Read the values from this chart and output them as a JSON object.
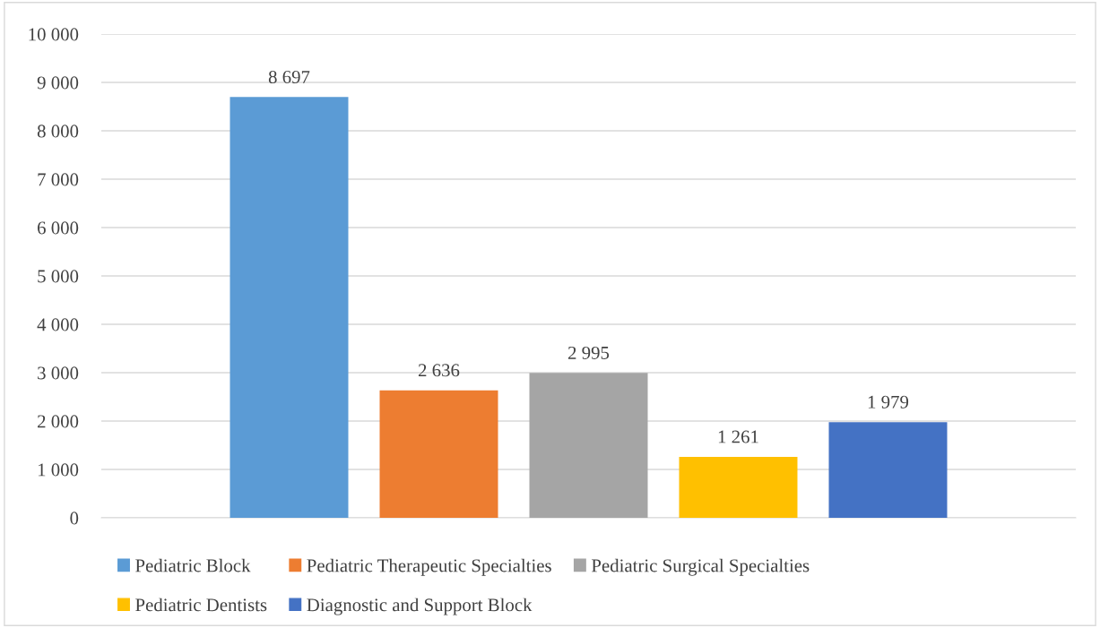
{
  "chart_data": {
    "type": "bar",
    "categories": [
      null
    ],
    "series": [
      {
        "name": "Pediatric Block",
        "color": "#5b9bd5",
        "values": [
          8697
        ],
        "value_labels": [
          "8 697"
        ]
      },
      {
        "name": "Pediatric Therapeutic Specialties",
        "color": "#ed7d31",
        "values": [
          2636
        ],
        "value_labels": [
          "2 636"
        ]
      },
      {
        "name": "Pediatric Surgical Specialties",
        "color": "#a5a5a5",
        "values": [
          2995
        ],
        "value_labels": [
          "2 995"
        ]
      },
      {
        "name": "Pediatric Dentists",
        "color": "#ffc000",
        "values": [
          1261
        ],
        "value_labels": [
          "1 261"
        ]
      },
      {
        "name": "Diagnostic and Support Block",
        "color": "#4472c4",
        "values": [
          1979
        ],
        "value_labels": [
          "1 979"
        ]
      }
    ],
    "ylim": [
      0,
      10000
    ],
    "yticks": [
      0,
      {
        "value": 1000,
        "label": "1 000"
      },
      {
        "value": 2000,
        "label": "2 000"
      },
      {
        "value": 3000,
        "label": "3 000"
      },
      {
        "value": 4000,
        "label": "4 000"
      },
      {
        "value": 5000,
        "label": "5 000"
      },
      {
        "value": 6000,
        "label": "6 000"
      },
      {
        "value": 7000,
        "label": "7 000"
      },
      {
        "value": 8000,
        "label": "8 000"
      },
      {
        "value": 9000,
        "label": "9 000"
      },
      {
        "value": 10000,
        "label": "10 000"
      }
    ],
    "grid": "y",
    "legend": "bottom"
  }
}
